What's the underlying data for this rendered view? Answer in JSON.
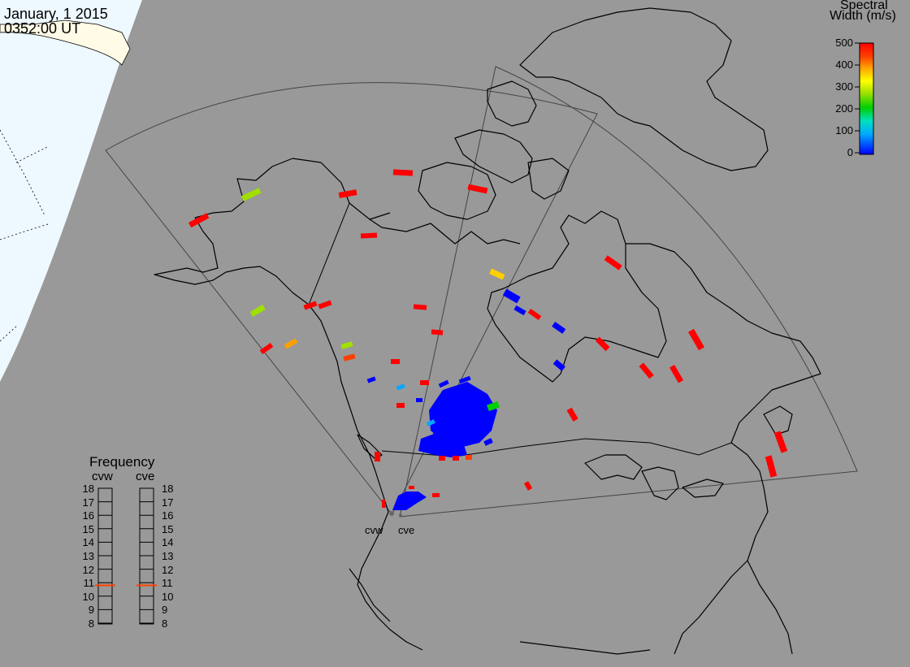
{
  "header": {
    "date": "January, 1 2015",
    "time": "0352:00 UT"
  },
  "colorbar": {
    "title_line1": "Spectral",
    "title_line2": "Width (m/s)",
    "ticks": [
      "500",
      "400",
      "300",
      "200",
      "100",
      "0"
    ],
    "range": [
      0,
      500
    ],
    "colormap": [
      "#0000ff",
      "#00a8ff",
      "#00e0c0",
      "#00d000",
      "#a0e000",
      "#ffff00",
      "#ffa000",
      "#ff4000",
      "#ff0000"
    ]
  },
  "frequency_panel": {
    "title": "Frequency",
    "left_label": "cvw",
    "right_label": "cve",
    "ticks": [
      "18",
      "17",
      "16",
      "15",
      "14",
      "13",
      "12",
      "11",
      "10",
      "9",
      "8"
    ],
    "range_mhz": [
      8,
      18
    ],
    "cvw_value": 10.8,
    "cve_value": 10.8,
    "marker_color": "#ff4000"
  },
  "radars": [
    {
      "label": "cvw"
    },
    {
      "label": "cve"
    }
  ],
  "colors": {
    "background": "#999999",
    "land_outline": "#000000",
    "fov": "#555555",
    "ocean_day": "#eef8ff",
    "land_day": "#fffbe6"
  }
}
